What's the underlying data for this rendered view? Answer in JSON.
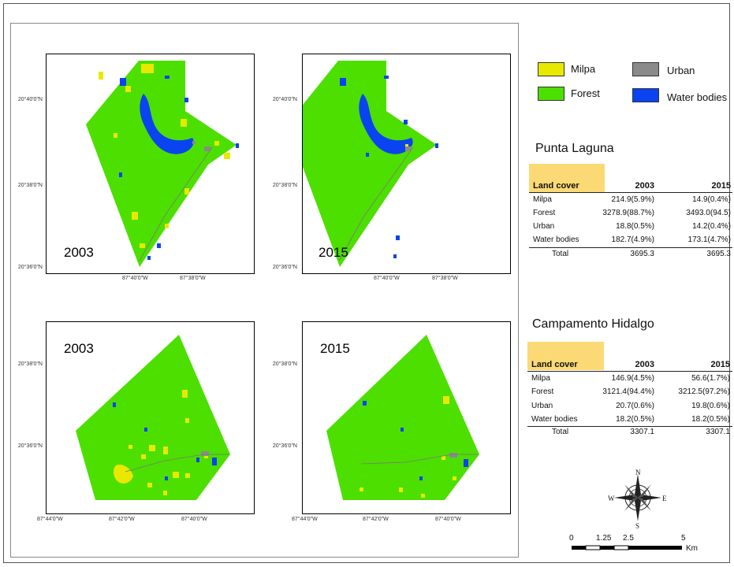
{
  "colors": {
    "milpa": "#e8e800",
    "forest": "#4cdf00",
    "urban": "#8a8a8a",
    "water": "#0a44f0",
    "table_header_bg": "#fbd974"
  },
  "panels": {
    "top_left": {
      "year": "2003",
      "lat_ticks": [
        "20°40'0\"N",
        "20°38'0\"N",
        "20°36'0\"N"
      ],
      "lon_ticks": [
        "87°40'0\"W",
        "87°38'0\"W"
      ]
    },
    "top_right": {
      "year": "2015",
      "lat_ticks": [
        "20°40'0\"N",
        "20°38'0\"N",
        "20°36'0\"N"
      ],
      "lon_ticks": [
        "87°40'0\"W",
        "87°38'0\"W"
      ]
    },
    "bottom_left": {
      "year": "2003",
      "lat_ticks": [
        "20°38'0\"N",
        "20°36'0\"N"
      ],
      "lon_ticks": [
        "87°44'0\"W",
        "87°42'0\"W",
        "87°40'0\"W"
      ]
    },
    "bottom_right": {
      "year": "2015",
      "lat_ticks": [
        "20°38'0\"N",
        "20°36'0\"N"
      ],
      "lon_ticks": [
        "87°44'0\"W",
        "87°42'0\"W",
        "87°40'0\"W"
      ]
    }
  },
  "legend": {
    "milpa": "Milpa",
    "forest": "Forest",
    "urban": "Urban",
    "water": "Water bodies"
  },
  "punta_laguna": {
    "title": "Punta Laguna",
    "header": [
      "Land cover",
      "2003",
      "2015"
    ],
    "rows": [
      [
        "Milpa",
        "214.9(5.9%)",
        "14.9(0.4%)"
      ],
      [
        "Forest",
        "3278.9(88.7%)",
        "3493.0(94.5)"
      ],
      [
        "Urban",
        "18.8(0.5%)",
        "14.2(0.4%)"
      ],
      [
        "Water bodies",
        "182.7(4.9%)",
        "173.1(4.7%)"
      ]
    ],
    "total": [
      "Total",
      "3695.3",
      "3695.3"
    ]
  },
  "campamento_hidalgo": {
    "title": "Campamento Hidalgo",
    "header": [
      "Land cover",
      "2003",
      "2015"
    ],
    "rows": [
      [
        "Milpa",
        "146.9(4.5%)",
        "56.6(1.7%)"
      ],
      [
        "Forest",
        "3121.4(94.4%)",
        "3212.5(97.2%)"
      ],
      [
        "Urban",
        "20.7(0.6%)",
        "19.8(0.6%)"
      ],
      [
        "Water bodies",
        "18.2(0.5%)",
        "18.2(0.5%)"
      ]
    ],
    "total": [
      "Total",
      "3307.1",
      "3307.1"
    ]
  },
  "compass": {
    "n": "N",
    "s": "S",
    "e": "E",
    "w": "W"
  },
  "scale_bar": {
    "labels": [
      "0",
      "1.25",
      "2.5",
      "5"
    ],
    "unit": "Km"
  }
}
